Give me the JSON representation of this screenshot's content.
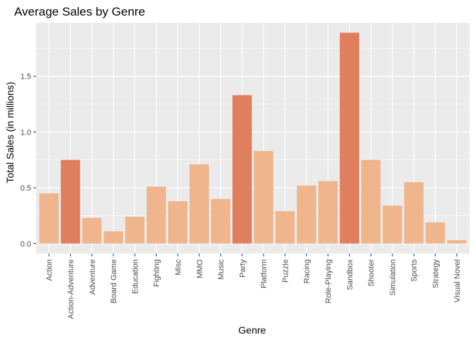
{
  "chart_data": {
    "type": "bar",
    "title": "Average Sales by Genre",
    "xlabel": "Genre",
    "ylabel": "Total Sales (in millions)",
    "categories": [
      "Action",
      "Action-Adventure",
      "Adventure",
      "Board Game",
      "Education",
      "Fighting",
      "Misc",
      "MMO",
      "Music",
      "Party",
      "Platform",
      "Puzzle",
      "Racing",
      "Role-Playing",
      "Sandbox",
      "Shooter",
      "Simulation",
      "Sports",
      "Strategy",
      "Visual Novel"
    ],
    "values": [
      0.45,
      0.75,
      0.23,
      0.11,
      0.24,
      0.51,
      0.38,
      0.71,
      0.4,
      1.33,
      0.83,
      0.29,
      0.52,
      0.56,
      1.89,
      0.75,
      0.34,
      0.55,
      0.19,
      0.03
    ],
    "highlighted": [
      false,
      true,
      false,
      false,
      false,
      false,
      false,
      false,
      false,
      true,
      false,
      false,
      false,
      false,
      true,
      false,
      false,
      false,
      false,
      false
    ],
    "yticks": [
      0.0,
      0.5,
      1.0,
      1.5
    ],
    "ytick_labels": [
      "0.0",
      "0.5",
      "1.0",
      "1.5"
    ],
    "ylim": [
      -0.09,
      1.98
    ],
    "grid": true,
    "legend": "none",
    "colors": {
      "panel": "#EBEBEB",
      "grid": "#FFFFFF",
      "bar": "#EFB58C",
      "bar_highlight": "#E07F5E",
      "tick": "#333333"
    }
  }
}
